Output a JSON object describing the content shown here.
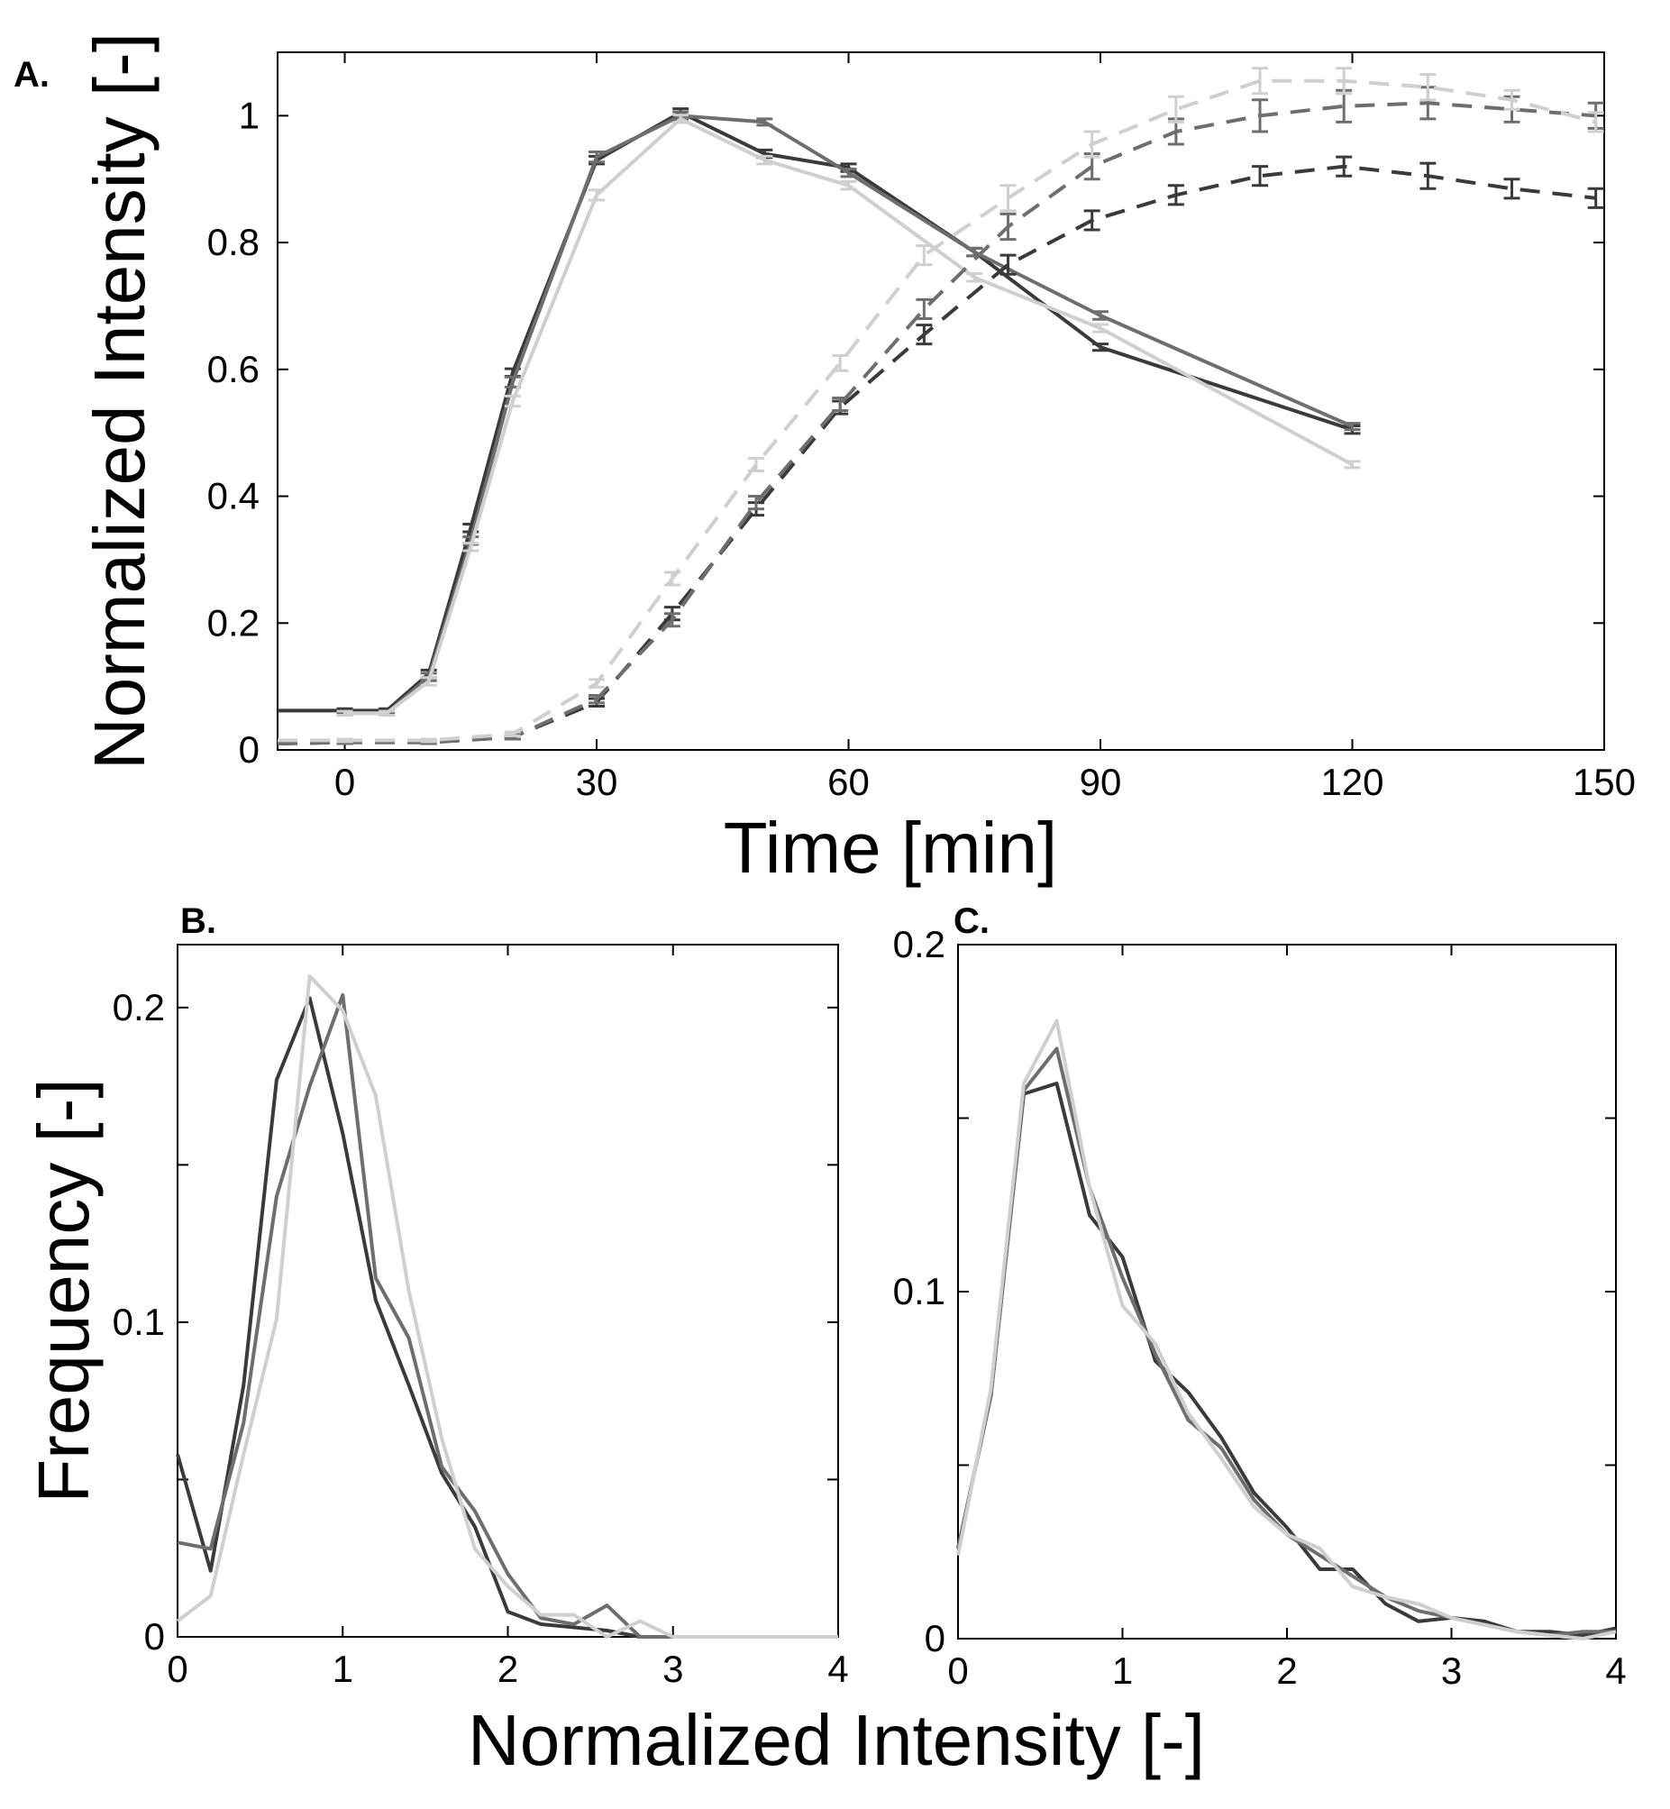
{
  "chart_data": [
    {
      "id": "A",
      "panel_label": "A.",
      "type": "line",
      "xlabel": "Time [min]",
      "ylabel": "Normalized Intensity [-]",
      "xlim": [
        -8,
        150
      ],
      "ylim": [
        0,
        1.1
      ],
      "xticks": [
        "0",
        "30",
        "60",
        "90",
        "120",
        "150"
      ],
      "xtick_values": [
        0,
        30,
        60,
        90,
        120,
        150
      ],
      "yticks": [
        "0",
        "0.2",
        "0.4",
        "0.6",
        "0.8",
        "1"
      ],
      "ytick_values": [
        0,
        0.2,
        0.4,
        0.6,
        0.8,
        1
      ],
      "series": [
        {
          "name": "solid dark",
          "color": "#3a3a3a",
          "dash": "solid",
          "x": [
            -8,
            0,
            5,
            10,
            15,
            20,
            30,
            40,
            50,
            60,
            75,
            90,
            120
          ],
          "y": [
            0.062,
            0.062,
            0.062,
            0.12,
            0.35,
            0.595,
            0.93,
            1.005,
            0.94,
            0.918,
            0.785,
            0.635,
            0.505
          ],
          "err": [
            0,
            0.003,
            0.003,
            0.006,
            0.006,
            0.006,
            0.006,
            0.006,
            0.006,
            0.006,
            0.006,
            0.005,
            0.006
          ]
        },
        {
          "name": "solid medium",
          "color": "#6e6e6e",
          "dash": "solid",
          "x": [
            0,
            5,
            10,
            15,
            20,
            30,
            40,
            50,
            60,
            75,
            90,
            120
          ],
          "y": [
            0.058,
            0.058,
            0.115,
            0.33,
            0.58,
            0.935,
            1.0,
            0.99,
            0.91,
            0.785,
            0.685,
            0.51
          ],
          "err": [
            0.003,
            0.003,
            0.006,
            0.006,
            0.008,
            0.008,
            0.006,
            0.005,
            0.006,
            0.006,
            0.006,
            0.005
          ]
        },
        {
          "name": "solid light",
          "color": "#cfcfcf",
          "dash": "solid",
          "x": [
            0,
            5,
            10,
            15,
            20,
            30,
            40,
            50,
            60,
            75,
            90,
            120
          ],
          "y": [
            0.058,
            0.058,
            0.108,
            0.32,
            0.55,
            0.875,
            0.995,
            0.93,
            0.89,
            0.745,
            0.665,
            0.45
          ],
          "err": [
            0.003,
            0.003,
            0.006,
            0.006,
            0.008,
            0.008,
            0.006,
            0.006,
            0.006,
            0.006,
            0.006,
            0.005
          ]
        },
        {
          "name": "dashed dark",
          "color": "#3a3a3a",
          "dash": "dashed",
          "x": [
            -8,
            0,
            10,
            20,
            30,
            39,
            49,
            59,
            69,
            79,
            89,
            99,
            109,
            119,
            129,
            139,
            149
          ],
          "y": [
            0.01,
            0.012,
            0.012,
            0.02,
            0.075,
            0.215,
            0.38,
            0.54,
            0.655,
            0.765,
            0.835,
            0.875,
            0.905,
            0.92,
            0.905,
            0.885,
            0.87
          ],
          "err": [
            0,
            0.002,
            0.002,
            0.003,
            0.006,
            0.01,
            0.01,
            0.01,
            0.015,
            0.015,
            0.015,
            0.015,
            0.015,
            0.015,
            0.02,
            0.015,
            0.015
          ]
        },
        {
          "name": "dashed medium",
          "color": "#6e6e6e",
          "dash": "dashed",
          "x": [
            -8,
            0,
            10,
            20,
            30,
            39,
            49,
            59,
            69,
            79,
            89,
            99,
            109,
            119,
            129,
            139,
            149
          ],
          "y": [
            0.01,
            0.012,
            0.012,
            0.02,
            0.08,
            0.205,
            0.39,
            0.545,
            0.695,
            0.825,
            0.92,
            0.975,
            1.0,
            1.015,
            1.02,
            1.01,
            1.0
          ],
          "err": [
            0,
            0.002,
            0.002,
            0.003,
            0.006,
            0.01,
            0.01,
            0.01,
            0.015,
            0.02,
            0.02,
            0.02,
            0.025,
            0.025,
            0.025,
            0.02,
            0.02
          ]
        },
        {
          "name": "dashed light",
          "color": "#cfcfcf",
          "dash": "dashed",
          "x": [
            -8,
            0,
            10,
            20,
            30,
            39,
            49,
            59,
            69,
            79,
            89,
            99,
            109,
            119,
            129,
            139,
            149
          ],
          "y": [
            0.015,
            0.015,
            0.015,
            0.025,
            0.105,
            0.27,
            0.45,
            0.61,
            0.78,
            0.87,
            0.955,
            1.01,
            1.055,
            1.055,
            1.045,
            1.025,
            0.99
          ],
          "err": [
            0,
            0.002,
            0.002,
            0.003,
            0.006,
            0.01,
            0.01,
            0.012,
            0.015,
            0.02,
            0.02,
            0.02,
            0.02,
            0.02,
            0.02,
            0.015,
            0.015
          ]
        }
      ]
    },
    {
      "id": "B",
      "panel_label": "B.",
      "type": "line",
      "xlabel": "Normalized Intensity [-]",
      "ylabel": "Frequency [-]",
      "xlim": [
        0,
        4
      ],
      "ylim": [
        0,
        0.22
      ],
      "xticks": [
        "0",
        "1",
        "2",
        "3",
        "4"
      ],
      "xtick_values": [
        0,
        1,
        2,
        3,
        4
      ],
      "yticks": [
        "0",
        "0.1",
        "0.2"
      ],
      "ytick_values": [
        0,
        0.1,
        0.2
      ],
      "series": [
        {
          "name": "dark",
          "color": "#3a3a3a",
          "x": [
            0,
            0.2,
            0.4,
            0.6,
            0.8,
            1.0,
            1.2,
            1.4,
            1.6,
            1.8,
            2.0,
            2.2,
            2.4,
            2.6,
            2.8,
            3.0,
            3.5,
            4.0
          ],
          "y": [
            0.058,
            0.021,
            0.08,
            0.177,
            0.203,
            0.16,
            0.107,
            0.08,
            0.052,
            0.035,
            0.008,
            0.004,
            0.003,
            0.002,
            0.0,
            0.0,
            0.0,
            0.0
          ]
        },
        {
          "name": "medium",
          "color": "#6e6e6e",
          "x": [
            0,
            0.2,
            0.4,
            0.6,
            0.8,
            1.0,
            1.2,
            1.4,
            1.6,
            1.8,
            2.0,
            2.2,
            2.4,
            2.6,
            2.8,
            3.0,
            3.5,
            4.0
          ],
          "y": [
            0.03,
            0.028,
            0.068,
            0.14,
            0.175,
            0.204,
            0.114,
            0.095,
            0.054,
            0.04,
            0.02,
            0.006,
            0.004,
            0.01,
            0.0,
            0.0,
            0.0,
            0.0
          ]
        },
        {
          "name": "light",
          "color": "#cfcfcf",
          "x": [
            0,
            0.2,
            0.4,
            0.6,
            0.8,
            1.0,
            1.2,
            1.4,
            1.6,
            1.8,
            2.0,
            2.2,
            2.4,
            2.6,
            2.8,
            3.0,
            3.5,
            4.0
          ],
          "y": [
            0.005,
            0.013,
            0.058,
            0.101,
            0.21,
            0.199,
            0.172,
            0.11,
            0.063,
            0.028,
            0.016,
            0.007,
            0.007,
            0.0,
            0.005,
            0.0,
            0.0,
            0.0
          ]
        }
      ]
    },
    {
      "id": "C",
      "panel_label": "C.",
      "type": "line",
      "xlabel": "Normalized Intensity [-]",
      "ylabel": "",
      "xlim": [
        0,
        4
      ],
      "ylim": [
        0,
        0.2
      ],
      "xticks": [
        "0",
        "1",
        "2",
        "3",
        "4"
      ],
      "xtick_values": [
        0,
        1,
        2,
        3,
        4
      ],
      "yticks": [
        "0",
        "0.1",
        "0.2"
      ],
      "ytick_values": [
        0,
        0.1,
        0.2
      ],
      "series": [
        {
          "name": "dark",
          "color": "#3a3a3a",
          "x": [
            0,
            0.2,
            0.4,
            0.6,
            0.8,
            1.0,
            1.2,
            1.4,
            1.6,
            1.8,
            2.0,
            2.2,
            2.4,
            2.6,
            2.8,
            3.0,
            3.2,
            3.4,
            3.6,
            3.8,
            4.0
          ],
          "y": [
            0.026,
            0.07,
            0.157,
            0.16,
            0.122,
            0.11,
            0.08,
            0.071,
            0.058,
            0.042,
            0.032,
            0.02,
            0.02,
            0.01,
            0.005,
            0.006,
            0.005,
            0.002,
            0.002,
            0.001,
            0.003
          ]
        },
        {
          "name": "medium",
          "color": "#6e6e6e",
          "x": [
            0,
            0.2,
            0.4,
            0.6,
            0.8,
            1.0,
            1.2,
            1.4,
            1.6,
            1.8,
            2.0,
            2.2,
            2.4,
            2.6,
            2.8,
            3.0,
            3.2,
            3.4,
            3.6,
            3.8,
            4.0
          ],
          "y": [
            0.026,
            0.07,
            0.158,
            0.17,
            0.13,
            0.104,
            0.082,
            0.063,
            0.055,
            0.04,
            0.03,
            0.024,
            0.018,
            0.012,
            0.008,
            0.006,
            0.004,
            0.002,
            0.001,
            0.002,
            0.002
          ]
        },
        {
          "name": "light",
          "color": "#cfcfcf",
          "x": [
            0,
            0.2,
            0.4,
            0.6,
            0.8,
            1.0,
            1.2,
            1.4,
            1.6,
            1.8,
            2.0,
            2.2,
            2.4,
            2.6,
            2.8,
            3.0,
            3.2,
            3.4,
            3.6,
            3.8,
            4.0
          ],
          "y": [
            0.024,
            0.072,
            0.16,
            0.178,
            0.13,
            0.096,
            0.085,
            0.065,
            0.052,
            0.038,
            0.03,
            0.026,
            0.015,
            0.012,
            0.01,
            0.006,
            0.004,
            0.002,
            0.001,
            0.0,
            0.002
          ]
        }
      ]
    }
  ]
}
